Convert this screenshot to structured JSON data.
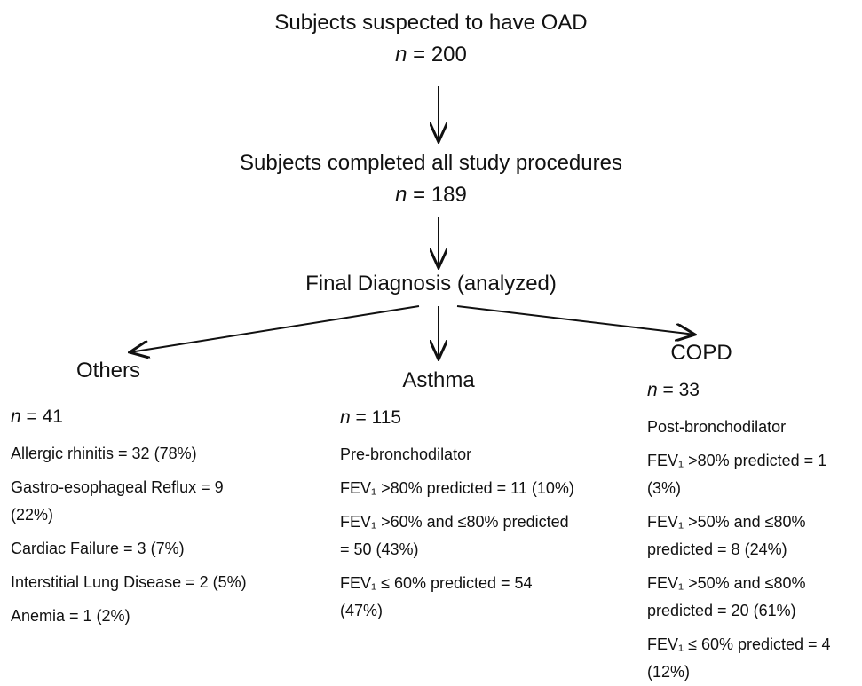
{
  "steps": [
    {
      "title": "Subjects suspected to have OAD",
      "n_symbol": "n",
      "n_value": "= 200"
    },
    {
      "title": "Subjects completed all study procedures",
      "n_symbol": "n",
      "n_value": "= 189"
    },
    {
      "title": "Final Diagnosis (analyzed)"
    }
  ],
  "groups": [
    {
      "title": "Others",
      "n_symbol": "n",
      "n_value": "= 41",
      "items": [
        "Allergic rhinitis = 32 (78%)",
        "Gastro-esophageal Reflux = 9 (22%)",
        "Cardiac Failure = 3 (7%)",
        "Interstitial Lung Disease = 2 (5%)",
        "Anemia = 1 (2%)"
      ]
    },
    {
      "title": "Asthma",
      "n_symbol": "n",
      "n_value": "= 115",
      "items": [
        "Pre-bronchodilator",
        "FEV₁ >80% predicted = 11 (10%)",
        "FEV₁ >60% and ≤80% predicted = 50 (43%)",
        "FEV₁ ≤ 60% predicted = 54 (47%)"
      ]
    },
    {
      "title": "COPD",
      "n_symbol": "n",
      "n_value": "= 33",
      "items": [
        "Post-bronchodilator",
        "FEV₁ >80% predicted = 1 (3%)",
        "FEV₁ >50% and ≤80% predicted = 8 (24%)",
        "FEV₁ >50% and ≤80% predicted = 20 (61%)",
        "FEV₁ ≤ 60% predicted = 4 (12%)"
      ]
    }
  ]
}
